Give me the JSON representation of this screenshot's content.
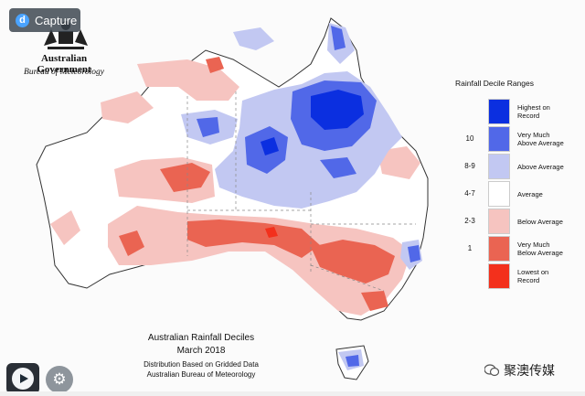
{
  "capture": {
    "label": "Capture",
    "icon": "d-logo-icon"
  },
  "header": {
    "government": "Australian Government",
    "bureau": "Bureau of Meteorology"
  },
  "legend": {
    "title": "Rainfall Decile Ranges",
    "items": [
      {
        "number": "",
        "label_line1": "Highest on",
        "label_line2": "Record",
        "color": "#0b2fe0"
      },
      {
        "number": "10",
        "label_line1": "Very Much",
        "label_line2": "Above Average",
        "color": "#5168e8"
      },
      {
        "number": "8-9",
        "label_line1": "Above Average",
        "label_line2": "",
        "color": "#c2c8f2"
      },
      {
        "number": "4-7",
        "label_line1": "Average",
        "label_line2": "",
        "color": "#ffffff"
      },
      {
        "number": "2-3",
        "label_line1": "Below Average",
        "label_line2": "",
        "color": "#f6c4c0"
      },
      {
        "number": "1",
        "label_line1": "Very Much",
        "label_line2": "Below Average",
        "color": "#ea6452"
      },
      {
        "number": "",
        "label_line1": "Lowest on",
        "label_line2": "Record",
        "color": "#f3301c"
      }
    ]
  },
  "footer": {
    "title": "Australian Rainfall Deciles",
    "month": "March 2018",
    "line1": "Distribution Based on Gridded Data",
    "line2": "Australian Bureau of Meteorology"
  },
  "watermark": {
    "text": "聚澳传媒"
  },
  "controls": {
    "play_icon": "play-icon",
    "settings_icon": "gear-icon"
  }
}
